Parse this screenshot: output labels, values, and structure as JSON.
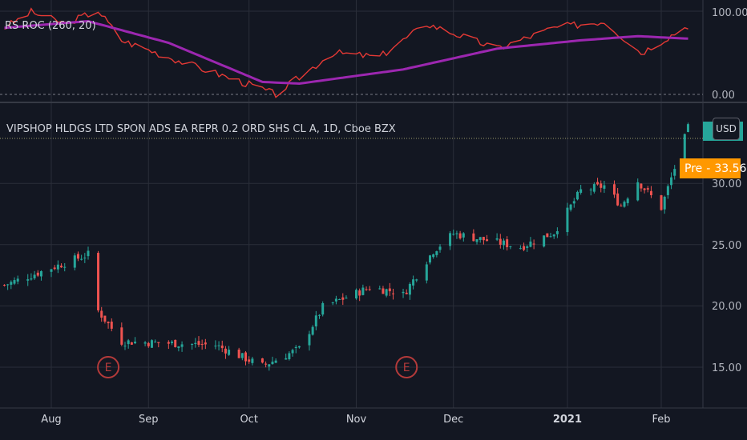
{
  "indicator": {
    "label": "RS ROC (260, 20)",
    "y_ticks": [
      "100.00",
      "0.00"
    ]
  },
  "main": {
    "title": "VIPSHOP HLDGS LTD SPON ADS EA REPR 0.2 ORD SHS CL A, 1D, Cboe BZX",
    "currency_button": "USD",
    "pre_label": "Pre",
    "pre_value": "33.56",
    "y_ticks": [
      "30.00",
      "25.00",
      "20.00",
      "15.00"
    ],
    "earnings_marker": "E"
  },
  "x_axis": {
    "labels": [
      "Aug",
      "Sep",
      "Oct",
      "Nov",
      "Dec",
      "2021",
      "Jan",
      "Feb"
    ]
  },
  "colors": {
    "background": "#131722",
    "up": "#26a69a",
    "down": "#ef5350",
    "roc_line": "#e53935",
    "roc_signal": "#9c27b0",
    "pre": "#ff9800",
    "earnings": "#b33a3a"
  },
  "chart_data": {
    "type": "candlestick",
    "title": "VIPSHOP HLDGS LTD SPON ADS EA REPR 0.2 ORD SHS CL A, 1D, Cboe BZX",
    "price_range": [
      13.3,
      34.6
    ],
    "price_key_points": [
      {
        "date": "2020-07-20",
        "close": 21.7
      },
      {
        "date": "2020-08-14",
        "close": 24.2
      },
      {
        "date": "2020-08-17",
        "close": 19.6
      },
      {
        "date": "2020-08-24",
        "close": 17.1
      },
      {
        "date": "2020-09-21",
        "close": 16.8
      },
      {
        "date": "2020-10-05",
        "close": 15.1
      },
      {
        "date": "2020-10-16",
        "close": 16.5
      },
      {
        "date": "2020-10-23",
        "close": 19.9
      },
      {
        "date": "2020-11-06",
        "close": 21.5
      },
      {
        "date": "2020-11-13",
        "close": 21.2
      },
      {
        "date": "2020-11-16",
        "close": 20.9
      },
      {
        "date": "2020-11-25",
        "close": 24.5
      },
      {
        "date": "2020-12-01",
        "close": 25.9
      },
      {
        "date": "2020-12-21",
        "close": 24.8
      },
      {
        "date": "2020-12-31",
        "close": 26.0
      },
      {
        "date": "2021-01-08",
        "close": 29.4
      },
      {
        "date": "2021-01-15",
        "close": 29.8
      },
      {
        "date": "2021-01-20",
        "close": 28.2
      },
      {
        "date": "2021-01-25",
        "close": 30.2
      },
      {
        "date": "2021-02-01",
        "close": 28.0
      },
      {
        "date": "2021-02-09",
        "close": 34.5
      }
    ],
    "earnings_events": [
      "2020-08-20",
      "2020-11-17"
    ],
    "pre_market": 33.56,
    "indicator": {
      "name": "RS ROC (260, 20)",
      "y_range": [
        0,
        100
      ],
      "roc_key_points": [
        {
          "date": "2020-07-20",
          "value": 80
        },
        {
          "date": "2020-07-28",
          "value": 99
        },
        {
          "date": "2020-08-07",
          "value": 85
        },
        {
          "date": "2020-08-17",
          "value": 101
        },
        {
          "date": "2020-08-24",
          "value": 65
        },
        {
          "date": "2020-09-14",
          "value": 35
        },
        {
          "date": "2020-10-01",
          "value": 12
        },
        {
          "date": "2020-10-09",
          "value": 0
        },
        {
          "date": "2020-10-26",
          "value": 50
        },
        {
          "date": "2020-11-09",
          "value": 45
        },
        {
          "date": "2020-11-23",
          "value": 85
        },
        {
          "date": "2020-12-14",
          "value": 55
        },
        {
          "date": "2020-12-31",
          "value": 80
        },
        {
          "date": "2021-01-15",
          "value": 88
        },
        {
          "date": "2021-01-26",
          "value": 50
        },
        {
          "date": "2021-02-09",
          "value": 83
        }
      ],
      "signal_key_points": [
        {
          "date": "2020-07-20",
          "value": 80
        },
        {
          "date": "2020-08-14",
          "value": 88
        },
        {
          "date": "2020-09-07",
          "value": 62
        },
        {
          "date": "2020-10-05",
          "value": 15
        },
        {
          "date": "2020-10-16",
          "value": 13
        },
        {
          "date": "2020-11-16",
          "value": 30
        },
        {
          "date": "2020-12-14",
          "value": 55
        },
        {
          "date": "2021-01-08",
          "value": 65
        },
        {
          "date": "2021-01-25",
          "value": 70
        },
        {
          "date": "2021-02-09",
          "value": 67
        }
      ]
    }
  }
}
